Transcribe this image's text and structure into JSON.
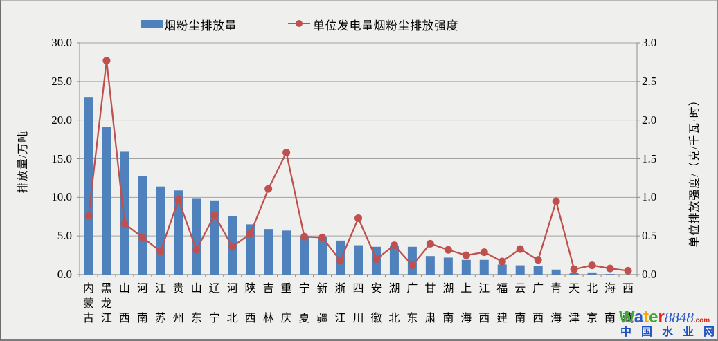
{
  "chart_data": {
    "type": "bar",
    "subtype": "bar-line-combo",
    "title": "",
    "categories": [
      "内蒙古",
      "黑龙江",
      "山西",
      "河南",
      "江苏",
      "贵州",
      "山东",
      "辽宁",
      "河北",
      "陕西",
      "吉林",
      "重庆",
      "宁夏",
      "新疆",
      "浙江",
      "四川",
      "安徽",
      "湖北",
      "广东",
      "甘肃",
      "湖南",
      "上海",
      "江西",
      "福建",
      "云南",
      "广西",
      "青海",
      "天津",
      "北京",
      "海南",
      "西藏"
    ],
    "series": [
      {
        "name": "烟粉尘排放量",
        "type": "bar",
        "axis": "left",
        "color": "#4f81bd",
        "values": [
          23.0,
          19.1,
          15.9,
          12.8,
          11.4,
          10.9,
          9.9,
          9.6,
          7.6,
          6.5,
          5.9,
          5.7,
          5.0,
          4.9,
          4.4,
          3.8,
          3.6,
          3.7,
          3.6,
          2.4,
          2.2,
          1.9,
          1.9,
          1.3,
          1.2,
          1.1,
          0.65,
          0.2,
          0.28,
          0.08,
          0.02
        ]
      },
      {
        "name": "单位发电量烟粉尘排放强度",
        "type": "line",
        "axis": "right",
        "color": "#c0504d",
        "values": [
          0.76,
          2.77,
          0.66,
          0.48,
          0.3,
          0.97,
          0.32,
          0.77,
          0.36,
          0.53,
          1.11,
          1.58,
          0.49,
          0.48,
          0.18,
          0.73,
          0.2,
          0.38,
          0.12,
          0.4,
          0.32,
          0.25,
          0.29,
          0.17,
          0.33,
          0.19,
          0.95,
          0.07,
          0.12,
          0.08,
          0.05
        ]
      }
    ],
    "left_axis": {
      "label": "排放量/万吨",
      "min": 0,
      "max": 30,
      "ticks": [
        "0.0",
        "5.0",
        "10.0",
        "15.0",
        "20.0",
        "25.0",
        "30.0"
      ]
    },
    "right_axis": {
      "label": "单位排放强度/（克/千瓦·时）",
      "min": 0,
      "max": 3,
      "ticks": [
        "0.0",
        "0.5",
        "1.0",
        "1.5",
        "2.0",
        "2.5",
        "3.0"
      ]
    },
    "grid": true,
    "legend_position": "top"
  },
  "watermark": {
    "letters": [
      {
        "ch": "W",
        "color": "#3aaa35"
      },
      {
        "ch": "a",
        "color": "#2b59c3"
      },
      {
        "ch": "t",
        "color": "#f6a800"
      },
      {
        "ch": "e",
        "color": "#3aaa35"
      },
      {
        "ch": "r",
        "color": "#e2231a"
      }
    ],
    "number": "8848",
    "number_color": "#2b59c3",
    "tld": ".com",
    "tld_color": "#e2231a",
    "line2": "中国水业网",
    "line2_color": "#1d4fc0"
  },
  "colors": {
    "bar": "#4f81bd",
    "line": "#c0504d",
    "grid": "#a3a3a3",
    "axis": "#8c8c8c",
    "background": "#efefed",
    "text": "#000000"
  }
}
